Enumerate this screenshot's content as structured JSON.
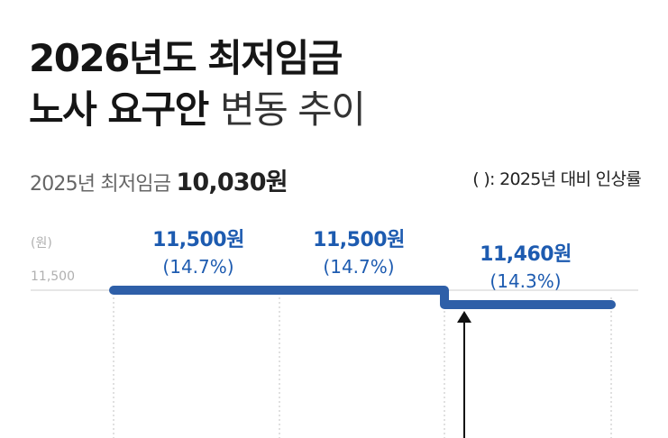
{
  "header": {
    "title_line1": "2026년도 최저임금",
    "title_line2_bold": "노사 요구안",
    "title_line2_light": "변동 추이",
    "subtitle_prefix": "2025년 최저임금",
    "subtitle_value": "10,030원",
    "note": "( ): 2025년 대비 인상률"
  },
  "colors": {
    "line": "#2e5fa8",
    "label": "#1d5bb0",
    "grid": "#cccccc",
    "title": "#151515"
  },
  "chart_data": {
    "type": "line",
    "title": "2026년도 최저임금 노사 요구안 변동 추이",
    "ylabel": "(원)",
    "yticks": [
      "11,500"
    ],
    "series": [
      {
        "values": [
          11500,
          11500,
          11460
        ],
        "labels": [
          "11,500원",
          "11,500원",
          "11,460원"
        ],
        "pct_labels": [
          "(14.7%)",
          "(14.7%)",
          "(14.3%)"
        ]
      }
    ],
    "baseline": 10030,
    "grid": true
  }
}
